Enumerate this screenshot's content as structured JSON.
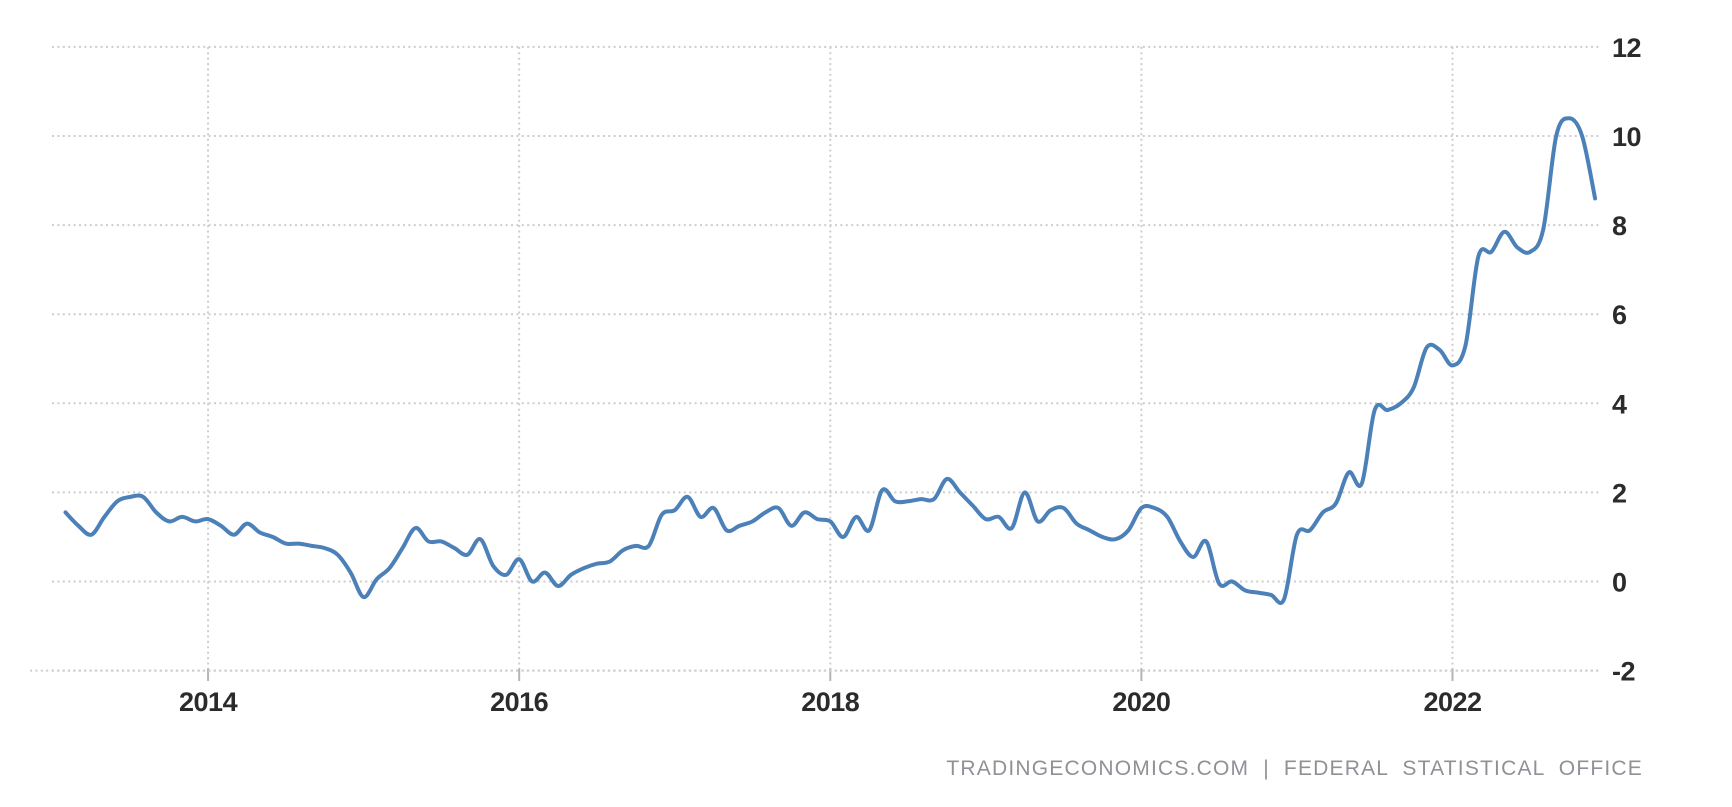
{
  "chart_data": {
    "type": "line",
    "title": "",
    "series": [
      {
        "name": "inflation-rate-percent",
        "start_month": "2013-02",
        "end_month": "2022-12",
        "frequency": "monthly",
        "values": [
          1.55,
          1.25,
          1.05,
          1.45,
          1.8,
          1.9,
          1.9,
          1.55,
          1.35,
          1.45,
          1.35,
          1.4,
          1.25,
          1.05,
          1.3,
          1.1,
          1.0,
          0.85,
          0.85,
          0.8,
          0.75,
          0.6,
          0.2,
          -0.35,
          0.05,
          0.3,
          0.75,
          1.2,
          0.9,
          0.9,
          0.75,
          0.6,
          0.95,
          0.35,
          0.15,
          0.5,
          0.0,
          0.2,
          -0.1,
          0.15,
          0.3,
          0.4,
          0.45,
          0.7,
          0.8,
          0.8,
          1.5,
          1.6,
          1.9,
          1.45,
          1.65,
          1.15,
          1.25,
          1.35,
          1.55,
          1.65,
          1.25,
          1.55,
          1.4,
          1.35,
          1.0,
          1.45,
          1.15,
          2.05,
          1.8,
          1.8,
          1.85,
          1.85,
          2.3,
          2.0,
          1.7,
          1.4,
          1.45,
          1.2,
          2.0,
          1.35,
          1.6,
          1.65,
          1.3,
          1.15,
          1.0,
          0.95,
          1.15,
          1.65,
          1.65,
          1.45,
          0.9,
          0.55,
          0.9,
          -0.05,
          0.0,
          -0.2,
          -0.25,
          -0.3,
          -0.4,
          1.05,
          1.15,
          1.55,
          1.75,
          2.45,
          2.2,
          3.85,
          3.85,
          4.0,
          4.35,
          5.25,
          5.2,
          4.85,
          5.3,
          7.3,
          7.4,
          7.85,
          7.5,
          7.4,
          7.9,
          10.0,
          10.4,
          10.0,
          8.6
        ]
      }
    ],
    "x_tick_years": [
      2014,
      2016,
      2018,
      2020,
      2022
    ],
    "x_tick_labels": [
      "2014",
      "2016",
      "2018",
      "2020",
      "2022"
    ],
    "y_ticks": [
      12,
      10,
      8,
      6,
      4,
      2,
      0,
      -2
    ],
    "y_tick_labels": [
      "12",
      "10",
      "8",
      "6",
      "4",
      "2",
      "0",
      "-2"
    ],
    "ylim": [
      -2,
      12
    ],
    "grid": "dotted",
    "legend": "none",
    "line_color": "#4c80b8",
    "grid_color": "#cdcdcd",
    "axis_tick_color": "#b5b5b5",
    "label_color": "#2b2b2b",
    "footer_color": "#8e9196",
    "background": "#ffffff"
  },
  "footer": {
    "attribution": "TRADINGECONOMICS.COM | FEDERAL STATISTICAL OFFICE"
  }
}
